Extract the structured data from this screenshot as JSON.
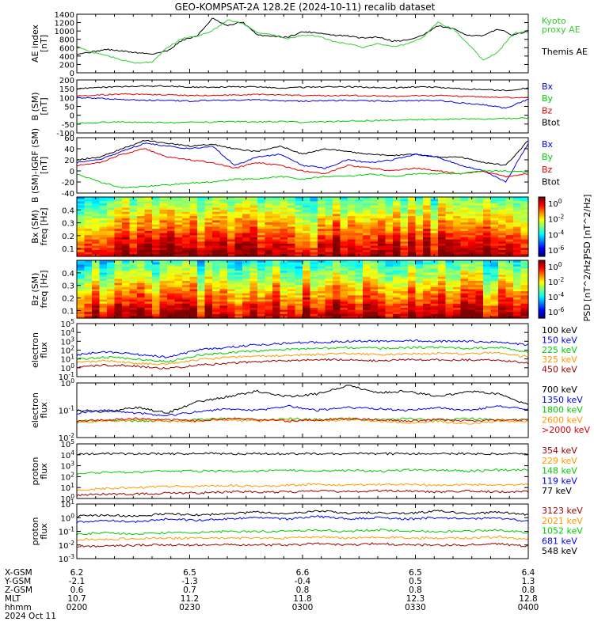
{
  "header": {
    "title": "GEO-KOMPSAT-2A 128.2E (2024-10-11) recalib dataset"
  },
  "colors": {
    "black": "#000000",
    "red": "#e00000",
    "blue": "#0000ee",
    "green": "#00cc00",
    "orange": "#ff9900",
    "darkred": "#990000",
    "lightgreen": "#33dd33"
  },
  "chart_data": [
    {
      "type": "line",
      "id": "ae",
      "ylabel": "AE index\n[nT]",
      "ylim": [
        0,
        1400
      ],
      "yticks": [
        "0",
        "200",
        "400",
        "600",
        "800",
        "1000",
        "1200",
        "1400"
      ],
      "legend": [
        {
          "name": "Kyoto\nproxy AE",
          "color": "#33cc33"
        },
        {
          "name": "Themis AE",
          "color": "#000000"
        }
      ],
      "x": [
        0,
        4,
        8,
        12,
        16,
        20,
        24,
        28,
        32,
        36,
        40,
        44,
        48,
        52,
        56,
        60,
        64,
        68,
        72,
        76,
        80,
        84,
        88,
        92,
        96,
        100,
        104,
        108,
        112,
        116,
        120
      ],
      "series": [
        {
          "color": "#000000",
          "values": [
            450,
            500,
            560,
            520,
            480,
            450,
            520,
            780,
            880,
            1300,
            1120,
            1220,
            900,
            880,
            850,
            980,
            960,
            900,
            880,
            830,
            860,
            760,
            780,
            900,
            1120,
            1050,
            900,
            880,
            1050,
            900,
            1000
          ]
        },
        {
          "color": "#33cc33",
          "values": [
            650,
            480,
            420,
            300,
            230,
            260,
            600,
            820,
            880,
            1000,
            1260,
            1180,
            960,
            900,
            820,
            900,
            880,
            760,
            700,
            600,
            700,
            620,
            700,
            850,
            1200,
            1050,
            700,
            300,
            500,
            950,
            980
          ]
        }
      ]
    },
    {
      "type": "line",
      "id": "b_sm",
      "ylabel": "B (SM)\n[nT]",
      "ylim": [
        -100,
        200
      ],
      "yticks": [
        "-100",
        "-50",
        "0",
        "50",
        "100",
        "150",
        "200"
      ],
      "legend": [
        {
          "name": "Bx",
          "color": "#0000ee"
        },
        {
          "name": "By",
          "color": "#00cc00"
        },
        {
          "name": "Bz",
          "color": "#e00000"
        },
        {
          "name": "Btot",
          "color": "#000000"
        }
      ],
      "x": [
        0,
        6,
        12,
        18,
        24,
        30,
        36,
        42,
        48,
        54,
        60,
        66,
        72,
        78,
        84,
        90,
        96,
        102,
        108,
        114,
        120
      ],
      "series": [
        {
          "color": "#000000",
          "values": [
            150,
            158,
            162,
            165,
            165,
            160,
            158,
            162,
            160,
            155,
            158,
            160,
            162,
            158,
            155,
            160,
            158,
            150,
            145,
            140,
            155
          ]
        },
        {
          "color": "#e00000",
          "values": [
            110,
            115,
            120,
            118,
            116,
            112,
            112,
            115,
            118,
            115,
            112,
            110,
            112,
            110,
            108,
            110,
            112,
            108,
            105,
            100,
            100
          ]
        },
        {
          "color": "#0000ee",
          "values": [
            100,
            95,
            90,
            85,
            85,
            80,
            85,
            85,
            88,
            82,
            80,
            82,
            85,
            82,
            80,
            82,
            85,
            70,
            60,
            40,
            90
          ]
        },
        {
          "color": "#00cc00",
          "values": [
            -45,
            -40,
            -38,
            -40,
            -42,
            -38,
            -40,
            -35,
            -38,
            -35,
            -40,
            -38,
            -32,
            -30,
            -28,
            -25,
            -25,
            -20,
            -22,
            -18,
            -15
          ]
        }
      ]
    },
    {
      "type": "line",
      "id": "b_igrf",
      "ylabel": "B (SM)-IGRF (SM)\n[nT]",
      "ylim": [
        -40,
        60
      ],
      "yticks": [
        "-40",
        "-20",
        "0",
        "20",
        "40",
        "60"
      ],
      "legend": [
        {
          "name": "Bx",
          "color": "#0000ee"
        },
        {
          "name": "By",
          "color": "#00cc00"
        },
        {
          "name": "Bz",
          "color": "#e00000"
        },
        {
          "name": "Btot",
          "color": "#000000"
        }
      ],
      "x": [
        0,
        6,
        12,
        18,
        24,
        30,
        36,
        42,
        48,
        54,
        60,
        66,
        72,
        78,
        84,
        90,
        96,
        102,
        108,
        114,
        120
      ],
      "series": [
        {
          "color": "#000000",
          "values": [
            20,
            25,
            40,
            55,
            50,
            45,
            48,
            40,
            35,
            45,
            30,
            40,
            35,
            30,
            28,
            30,
            25,
            25,
            15,
            10,
            55
          ]
        },
        {
          "color": "#0000ee",
          "values": [
            15,
            20,
            35,
            50,
            45,
            40,
            45,
            10,
            25,
            30,
            10,
            5,
            20,
            15,
            20,
            30,
            25,
            10,
            0,
            -20,
            50
          ]
        },
        {
          "color": "#e00000",
          "values": [
            10,
            15,
            30,
            40,
            25,
            20,
            15,
            5,
            15,
            10,
            0,
            -5,
            10,
            5,
            0,
            5,
            0,
            -5,
            0,
            -10,
            -5
          ]
        },
        {
          "color": "#00cc00",
          "values": [
            -5,
            -20,
            -30,
            -28,
            -25,
            -22,
            -20,
            -15,
            -15,
            -10,
            -15,
            -10,
            -10,
            -5,
            -10,
            -5,
            -5,
            -5,
            0,
            0,
            -2
          ]
        }
      ]
    },
    {
      "type": "heatmap",
      "id": "bx_spec",
      "ylabel": "Bx (SM)\nfreq [Hz]",
      "ylim": [
        0.04,
        0.5
      ],
      "yticks": [
        "0.1",
        "0.2",
        "0.3",
        "0.4"
      ],
      "colorbar": {
        "label": "PSD [nT^2/Hz]",
        "ticks": [
          "10^0",
          "10^-2",
          "10^-4",
          "10^-6"
        ]
      }
    },
    {
      "type": "heatmap",
      "id": "bz_spec",
      "ylabel": "Bz (SM)\nfreq [Hz]",
      "ylim": [
        0.04,
        0.5
      ],
      "yticks": [
        "0.1",
        "0.2",
        "0.3",
        "0.4"
      ],
      "colorbar": {
        "label": "PSD [nT^2/Hz]",
        "ticks": [
          "10^0",
          "10^-2",
          "10^-4",
          "10^-6"
        ]
      }
    },
    {
      "type": "line",
      "id": "e_flux_low",
      "log": true,
      "ylabel": "electron\nflux",
      "ylog": [
        -1,
        5
      ],
      "yticks": [
        "10^-1",
        "10^0",
        "10^1",
        "10^2",
        "10^3",
        "10^4",
        "10^5"
      ],
      "legend": [
        {
          "name": "100 keV",
          "color": "#000000"
        },
        {
          "name": "150 keV",
          "color": "#0000ee"
        },
        {
          "name": "225 keV",
          "color": "#00cc00"
        },
        {
          "name": "325 keV",
          "color": "#ff9900"
        },
        {
          "name": "450 keV",
          "color": "#990000"
        }
      ],
      "x": [
        0,
        8,
        16,
        24,
        32,
        40,
        48,
        56,
        64,
        72,
        80,
        88,
        96,
        104,
        112,
        120
      ],
      "series": [
        {
          "color": "#0000ee",
          "values": [
            1.5,
            1.8,
            1.5,
            1.2,
            2.0,
            2.3,
            2.6,
            2.8,
            2.9,
            3.0,
            3.0,
            3.1,
            3.0,
            3.0,
            2.9,
            2.6
          ]
        },
        {
          "color": "#00cc00",
          "values": [
            1.0,
            1.2,
            1.0,
            0.7,
            1.4,
            1.7,
            1.9,
            2.1,
            2.2,
            2.3,
            2.2,
            2.3,
            2.3,
            2.2,
            2.3,
            1.8
          ]
        },
        {
          "color": "#ff9900",
          "values": [
            0.6,
            0.8,
            0.5,
            0.4,
            0.9,
            1.2,
            1.3,
            1.4,
            1.5,
            1.6,
            1.5,
            1.6,
            1.6,
            1.6,
            1.7,
            1.2
          ]
        },
        {
          "color": "#990000",
          "values": [
            0.1,
            0.3,
            0.2,
            -0.1,
            0.3,
            0.5,
            0.7,
            0.8,
            0.9,
            0.9,
            0.8,
            0.9,
            0.9,
            0.9,
            0.9,
            0.5
          ]
        }
      ]
    },
    {
      "type": "line",
      "id": "e_flux_high",
      "log": true,
      "ylabel": "electron\nflux",
      "ylog": [
        -2,
        0
      ],
      "yticks": [
        "10^-2",
        "10^-1",
        "10^0"
      ],
      "legend": [
        {
          "name": "700 keV",
          "color": "#000000"
        },
        {
          "name": "1350 keV",
          "color": "#0000ee"
        },
        {
          "name": "1800 keV",
          "color": "#00cc00"
        },
        {
          "name": "2600 keV",
          "color": "#ff9900"
        },
        {
          "name": ">2000 keV",
          "color": "#e00000"
        }
      ],
      "x": [
        0,
        8,
        16,
        24,
        32,
        40,
        48,
        56,
        64,
        72,
        80,
        88,
        96,
        104,
        112,
        120
      ],
      "series": [
        {
          "color": "#000000",
          "values": [
            -1.0,
            -1.05,
            -0.9,
            -1.1,
            -0.7,
            -0.5,
            -0.3,
            -0.5,
            -0.4,
            -0.1,
            -0.35,
            -0.3,
            -0.5,
            -0.3,
            -0.4,
            -0.8
          ]
        },
        {
          "color": "#0000ee",
          "values": [
            -1.1,
            -1.0,
            -1.1,
            -1.2,
            -1.05,
            -0.95,
            -1.0,
            -0.85,
            -1.0,
            -0.9,
            -0.95,
            -1.0,
            -0.9,
            -1.0,
            -0.85,
            -0.95
          ]
        },
        {
          "color": "#00cc00",
          "values": [
            -1.4,
            -1.35,
            -1.4,
            -1.4,
            -1.35,
            -1.3,
            -1.35,
            -1.3,
            -1.35,
            -1.3,
            -1.35,
            -1.3,
            -1.35,
            -1.3,
            -1.35,
            -1.35
          ]
        },
        {
          "color": "#ff9900",
          "values": [
            -1.45,
            -1.4,
            -1.35,
            -1.4,
            -1.4,
            -1.35,
            -1.4,
            -1.35,
            -1.4,
            -1.35,
            -1.4,
            -1.45,
            -1.4,
            -1.5,
            -1.4,
            -1.4
          ]
        },
        {
          "color": "#e00000",
          "values": [
            -1.4,
            -1.35,
            -1.3,
            -1.35,
            -1.4,
            -1.3,
            -1.35,
            -1.4,
            -1.35,
            -1.3,
            -1.35,
            -1.4,
            -1.35,
            -1.4,
            -1.35,
            -1.35
          ]
        }
      ]
    },
    {
      "type": "line",
      "id": "p_flux_low",
      "log": true,
      "ylabel": "proton\nflux",
      "ylog": [
        0,
        5
      ],
      "yticks": [
        "10^0",
        "10^1",
        "10^2",
        "10^3",
        "10^4",
        "10^5"
      ],
      "legend": [
        {
          "name": "354 keV",
          "color": "#990000"
        },
        {
          "name": "229 keV",
          "color": "#ff9900"
        },
        {
          "name": "148 keV",
          "color": "#00cc00"
        },
        {
          "name": "119 keV",
          "color": "#0000ee"
        },
        {
          "name": "77 keV",
          "color": "#000000"
        }
      ],
      "x": [
        0,
        8,
        16,
        24,
        32,
        40,
        48,
        56,
        64,
        72,
        80,
        88,
        96,
        104,
        112,
        120
      ],
      "series": [
        {
          "color": "#000000",
          "values": [
            4.1,
            4.1,
            4.1,
            4.1,
            4.1,
            4.1,
            4.1,
            4.1,
            4.1,
            4.1,
            4.1,
            4.1,
            4.1,
            4.1,
            4.1,
            4.1
          ]
        },
        {
          "color": "#00cc00",
          "values": [
            2.3,
            2.4,
            2.4,
            2.5,
            2.5,
            2.5,
            2.5,
            2.6,
            2.5,
            2.6,
            2.5,
            2.6,
            2.6,
            2.5,
            2.6,
            2.6
          ]
        },
        {
          "color": "#ff9900",
          "values": [
            0.8,
            0.9,
            1.0,
            1.1,
            1.1,
            1.2,
            1.1,
            1.2,
            1.3,
            1.2,
            1.3,
            1.3,
            1.2,
            1.3,
            1.2,
            1.3
          ]
        },
        {
          "color": "#990000",
          "values": [
            0.3,
            0.4,
            0.4,
            0.5,
            0.5,
            0.6,
            0.6,
            0.6,
            0.7,
            0.6,
            0.7,
            0.7,
            0.6,
            0.7,
            0.6,
            0.6
          ]
        }
      ]
    },
    {
      "type": "line",
      "id": "p_flux_high",
      "log": true,
      "ylabel": "proton\nflux",
      "ylog": [
        -3,
        1
      ],
      "yticks": [
        "10^-3",
        "10^-2",
        "10^-1",
        "10^0",
        "10^1"
      ],
      "legend": [
        {
          "name": "3123 keV",
          "color": "#990000"
        },
        {
          "name": "2021 keV",
          "color": "#ff9900"
        },
        {
          "name": "1052 keV",
          "color": "#00cc00"
        },
        {
          "name": "681 keV",
          "color": "#0000ee"
        },
        {
          "name": "548 keV",
          "color": "#000000"
        }
      ],
      "x": [
        0,
        8,
        16,
        24,
        32,
        40,
        48,
        56,
        64,
        72,
        80,
        88,
        96,
        104,
        112,
        120
      ],
      "series": [
        {
          "color": "#000000",
          "values": [
            0.1,
            0.2,
            0.1,
            0.3,
            0.2,
            0.3,
            0.4,
            0.3,
            0.5,
            0.3,
            0.4,
            0.3,
            0.5,
            0.3,
            0.4,
            0.2
          ]
        },
        {
          "color": "#0000ee",
          "values": [
            -0.3,
            -0.2,
            -0.3,
            -0.1,
            -0.2,
            -0.1,
            0.0,
            -0.1,
            0.1,
            -0.1,
            0.0,
            -0.1,
            0.0,
            -0.1,
            0.0,
            -0.3
          ]
        },
        {
          "color": "#00cc00",
          "values": [
            -1.2,
            -1.1,
            -1.2,
            -1.1,
            -1.1,
            -1.0,
            -1.0,
            -1.0,
            -0.9,
            -1.0,
            -0.9,
            -1.0,
            -1.0,
            -1.0,
            -0.9,
            -1.1
          ]
        },
        {
          "color": "#ff9900",
          "values": [
            -1.6,
            -1.6,
            -1.5,
            -1.5,
            -1.5,
            -1.5,
            -1.5,
            -1.5,
            -1.4,
            -1.5,
            -1.4,
            -1.5,
            -1.5,
            -1.5,
            -1.4,
            -1.6
          ]
        },
        {
          "color": "#990000",
          "values": [
            -2.1,
            -2.1,
            -2.0,
            -2.0,
            -2.0,
            -2.0,
            -2.0,
            -2.0,
            -1.9,
            -2.0,
            -1.9,
            -2.0,
            -2.0,
            -2.0,
            -1.9,
            -2.1
          ]
        }
      ]
    }
  ],
  "footer": {
    "rows": [
      {
        "label": "X-GSM",
        "values": [
          "6.2",
          "6.5",
          "6.6",
          "6.5",
          "6.4"
        ]
      },
      {
        "label": "Y-GSM",
        "values": [
          "-2.1",
          "-1.3",
          "-0.4",
          "0.5",
          "1.3"
        ]
      },
      {
        "label": "Z-GSM",
        "values": [
          "0.6",
          "0.7",
          "0.8",
          "0.8",
          "0.8"
        ]
      },
      {
        "label": "MLT",
        "values": [
          "10.7",
          "11.2",
          "11.8",
          "12.3",
          "12.8"
        ]
      },
      {
        "label": "hhmm",
        "values": [
          "0200",
          "0230",
          "0300",
          "0330",
          "0400"
        ]
      }
    ],
    "date": "2024 Oct 11"
  }
}
